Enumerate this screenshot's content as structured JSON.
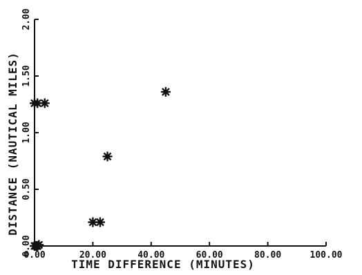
{
  "chart_data": {
    "type": "scatter",
    "title": "",
    "xlabel": "TIME DIFFERENCE (MINUTES)",
    "ylabel": "DISTANCE (NAUTICAL MILES)",
    "xlim": [
      0,
      100
    ],
    "ylim": [
      0,
      2
    ],
    "grid": false,
    "x_tick_values": [
      0,
      20,
      40,
      60,
      80,
      100
    ],
    "x_tick_labels": [
      "0.00",
      "20.00",
      "40.00",
      "60.00",
      "80.00",
      "100.00"
    ],
    "y_tick_values": [
      0,
      0.5,
      1,
      1.5,
      2
    ],
    "y_tick_labels": [
      "0.00",
      "0.50",
      "1.00",
      "1.50",
      "2.00"
    ],
    "marker": "asterisk",
    "colors": {
      "ink": "#111111",
      "background": "#ffffff"
    },
    "series": [
      {
        "x": [
          0,
          0.5,
          1,
          1.5,
          0,
          1,
          3.5,
          20,
          22.5,
          25,
          45
        ],
        "y": [
          0,
          0,
          0,
          0.01,
          1.26,
          1.26,
          1.26,
          0.21,
          0.21,
          0.79,
          1.36
        ]
      }
    ]
  }
}
